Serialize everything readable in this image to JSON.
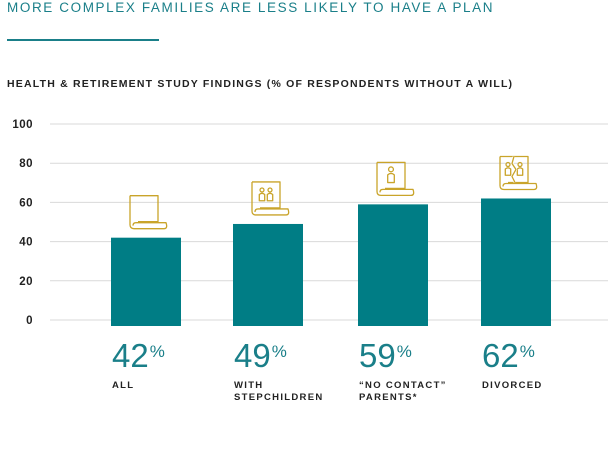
{
  "header": {
    "title": "MORE COMPLEX FAMILIES ARE LESS LIKELY TO HAVE A PLAN",
    "subtitle": "HEALTH & RETIREMENT STUDY FINDINGS (% OF RESPONDENTS WITHOUT A WILL)"
  },
  "colors": {
    "accent": "#1a7f89",
    "bar": "#007d85",
    "icon": "#c9a42a",
    "grid": "#d9d9d9"
  },
  "chart_data": {
    "type": "bar",
    "title": "HEALTH & RETIREMENT STUDY FINDINGS (% OF RESPONDENTS WITHOUT A WILL)",
    "categories": [
      "ALL",
      "WITH STEPCHILDREN",
      "“NO CONTACT” PARENTS*",
      "DIVORCED"
    ],
    "category_lines": [
      [
        "ALL"
      ],
      [
        "WITH",
        "STEPCHILDREN"
      ],
      [
        "“NO CONTACT”",
        "PARENTS*"
      ],
      [
        "DIVORCED"
      ]
    ],
    "values": [
      42,
      49,
      59,
      62
    ],
    "value_labels": [
      "42",
      "49",
      "59",
      "62"
    ],
    "value_suffix": "%",
    "icons": [
      "document-icon",
      "stepchildren-document-icon",
      "single-parent-document-icon",
      "divorced-document-icon"
    ],
    "yticks": [
      0,
      20,
      40,
      60,
      80,
      100
    ],
    "ylim": [
      0,
      100
    ],
    "grid": true,
    "xlabel": "",
    "ylabel": ""
  }
}
